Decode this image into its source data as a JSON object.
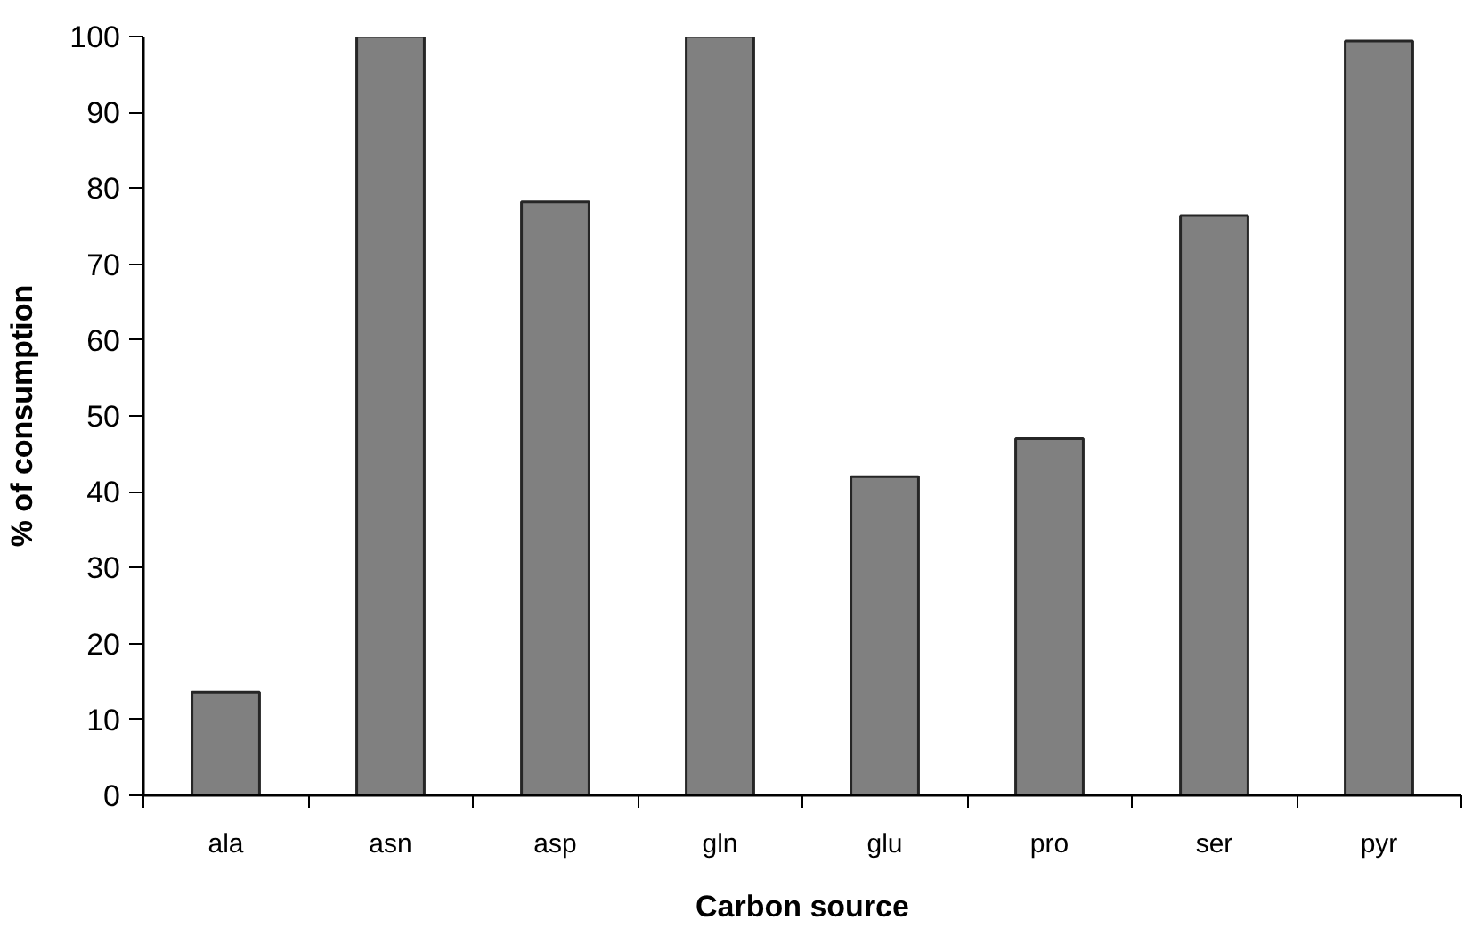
{
  "chart_data": {
    "type": "bar",
    "xlabel": "Carbon source",
    "ylabel": "% of consumption",
    "categories": [
      "ala",
      "asn",
      "asp",
      "gln",
      "glu",
      "pro",
      "ser",
      "pyr"
    ],
    "values": [
      13.6,
      100,
      78.2,
      100,
      42.0,
      47.0,
      76.4,
      99.4
    ],
    "color": "#808080",
    "ylim": [
      0,
      100
    ],
    "yticks": [
      0,
      10,
      20,
      30,
      40,
      50,
      60,
      70,
      80,
      90,
      100
    ],
    "grid": false
  }
}
